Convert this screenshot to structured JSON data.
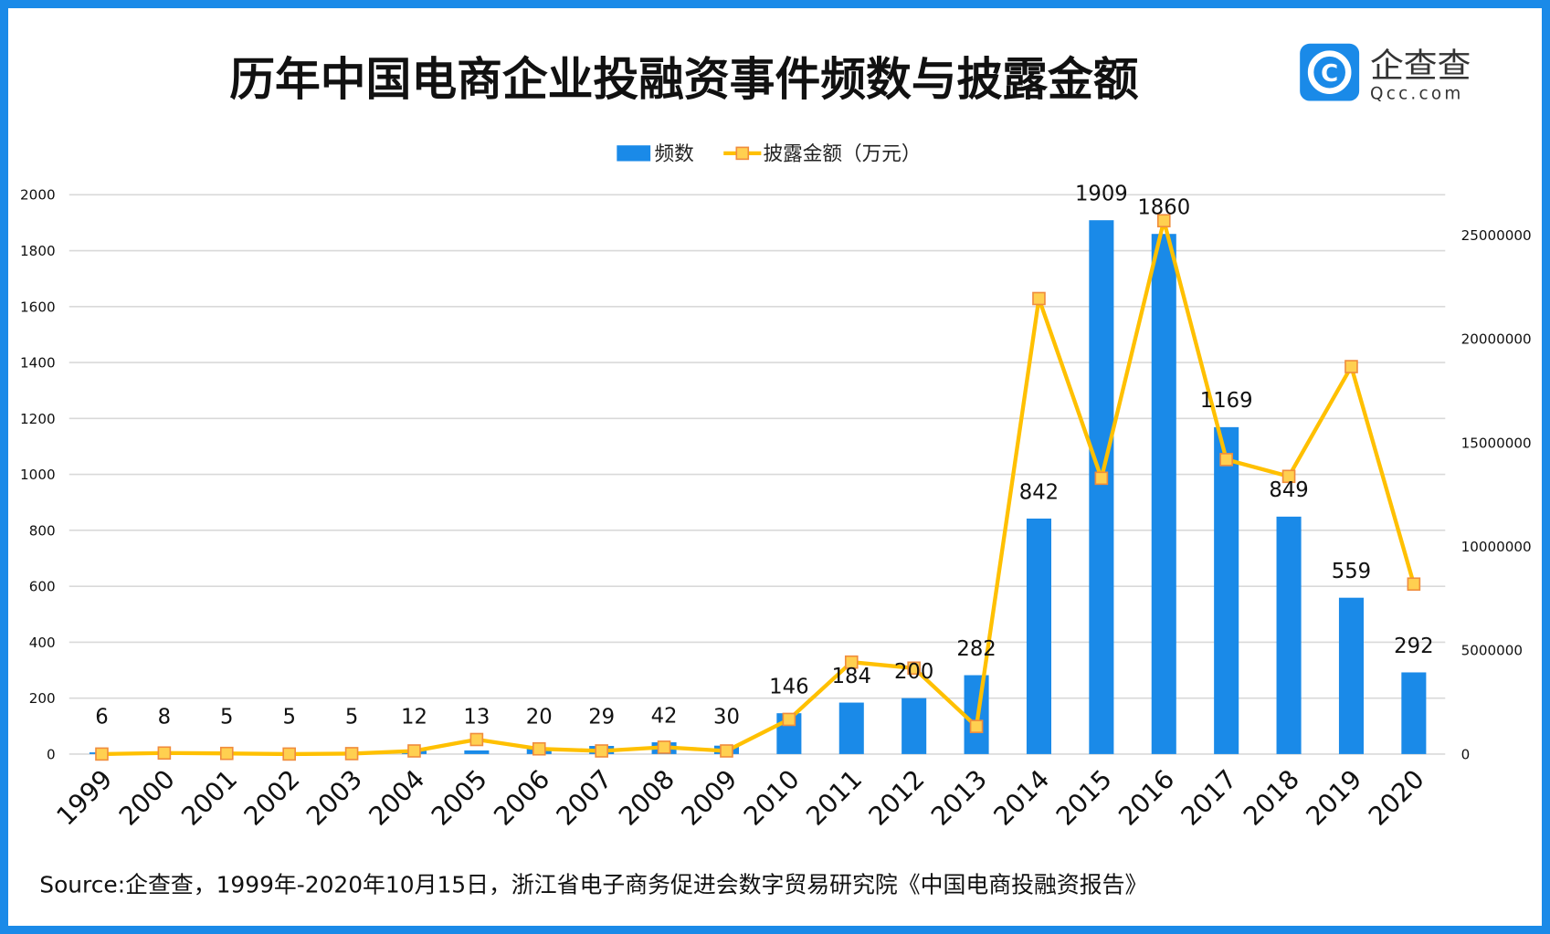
{
  "title": "历年中国电商企业投融资事件频数与披露金额",
  "logo": {
    "name": "企查查",
    "domain": "Qcc.com",
    "color": "#1a8ae8"
  },
  "source": "Source:企查查，1999年-2020年10月15日，浙江省电子商务促进会数字贸易研究院《中国电商投融资报告》",
  "colors": {
    "bar": "#1a8ae8",
    "line": "#ffc000",
    "marker_fill": "#ffd050",
    "marker_stroke": "#f08c3c",
    "frame": "#1a8ae8"
  },
  "chart_data": {
    "type": "bar+line",
    "legend_position": "top",
    "grid": true,
    "categories": [
      "1999",
      "2000",
      "2001",
      "2002",
      "2003",
      "2004",
      "2005",
      "2006",
      "2007",
      "2008",
      "2009",
      "2010",
      "2011",
      "2012",
      "2013",
      "2014",
      "2015",
      "2016",
      "2017",
      "2018",
      "2019",
      "2020"
    ],
    "series": [
      {
        "name": "频数",
        "type": "bar",
        "axis": "left",
        "values": [
          6,
          8,
          5,
          5,
          5,
          12,
          13,
          20,
          29,
          42,
          30,
          146,
          184,
          200,
          282,
          842,
          1909,
          1860,
          1169,
          849,
          559,
          292
        ]
      },
      {
        "name": "披露金额（万元）",
        "type": "line",
        "axis": "right",
        "values": [
          0,
          50000,
          30000,
          0,
          20000,
          150000,
          700000,
          250000,
          150000,
          330000,
          150000,
          1670000,
          4430000,
          4140000,
          1330000,
          21950000,
          13290000,
          25700000,
          14190000,
          13380000,
          18670000,
          8190000
        ]
      }
    ],
    "y_left": {
      "range": [
        0,
        2000
      ],
      "ticks": [
        "0",
        "200",
        "400",
        "600",
        "800",
        "1000",
        "1200",
        "1400",
        "1600",
        "1800",
        "2000"
      ]
    },
    "y_right": {
      "range": [
        0,
        26950000
      ],
      "ticks": [
        "0",
        "5000000",
        "10000000",
        "15000000",
        "20000000",
        "25000000"
      ]
    }
  }
}
